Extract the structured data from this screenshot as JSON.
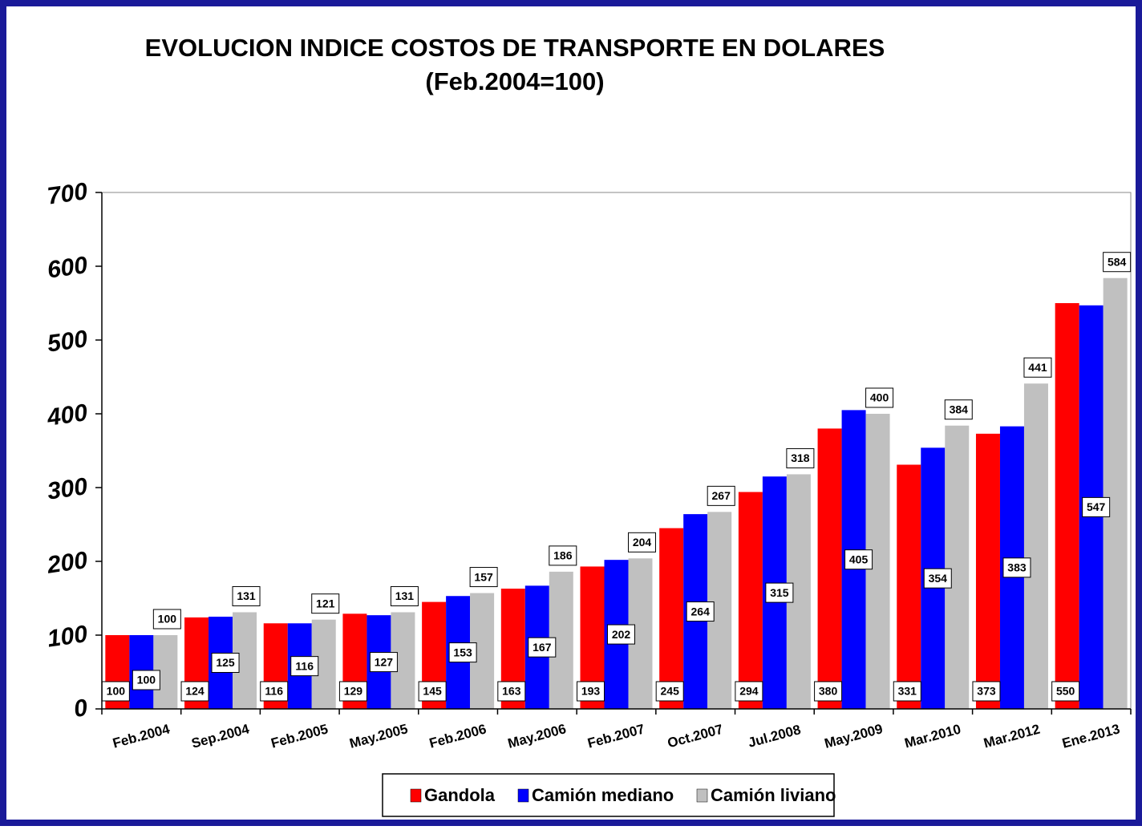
{
  "chart_data": {
    "type": "bar",
    "title": "EVOLUCION  INDICE COSTOS DE TRANSPORTE EN DOLARES",
    "subtitle": "(Feb.2004=100)",
    "categories": [
      "Feb.2004",
      "Sep.2004",
      "Feb.2005",
      "May.2005",
      "Feb.2006",
      "May.2006",
      "Feb.2007",
      "Oct.2007",
      "Jul.2008",
      "May.2009",
      "Mar.2010",
      "Mar.2012",
      "Ene.2013"
    ],
    "series": [
      {
        "name": "Gandola",
        "color": "#ff0000",
        "values": [
          100,
          124,
          116,
          129,
          145,
          163,
          193,
          245,
          294,
          380,
          331,
          373,
          550
        ]
      },
      {
        "name": "Camión mediano",
        "color": "#0000ff",
        "values": [
          100,
          125,
          116,
          127,
          153,
          167,
          202,
          264,
          315,
          405,
          354,
          383,
          547
        ]
      },
      {
        "name": "Camión liviano",
        "color": "#c0c0c0",
        "values": [
          100,
          131,
          121,
          131,
          157,
          186,
          204,
          267,
          318,
          400,
          384,
          441,
          584
        ]
      }
    ],
    "ylim": [
      0,
      700
    ],
    "yticks": [
      0,
      100,
      200,
      300,
      400,
      500,
      600,
      700
    ],
    "grid": false,
    "legend": "bottom"
  }
}
